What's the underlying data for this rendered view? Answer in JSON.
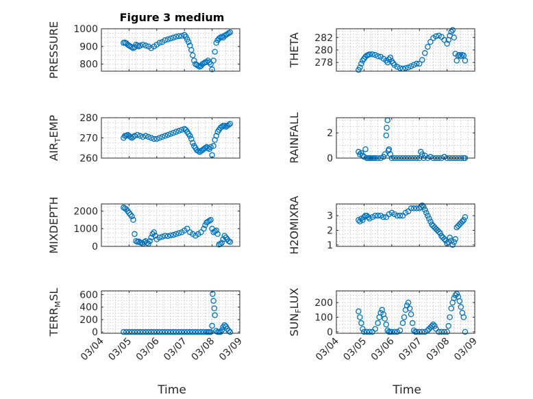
{
  "figure": {
    "title": "Figure 3 medium",
    "xlabel": "Time"
  },
  "colors": {
    "marker": "#0072BD",
    "axes": "#262626",
    "grid": "#bdbdbd"
  },
  "x_tick_labels": [
    "03/04",
    "03/05",
    "03/06",
    "03/07",
    "03/08",
    "03/09"
  ],
  "chart_data": [
    {
      "type": "scatter",
      "id": "pressure",
      "ylabel": "PRESSURE",
      "grid": true,
      "xlim": [
        0,
        5
      ],
      "ylim": [
        760,
        1000
      ],
      "yticks": [
        800,
        900,
        1000
      ],
      "x": [
        0.8,
        0.85,
        0.9,
        0.95,
        1.0,
        1.05,
        1.1,
        1.15,
        1.2,
        1.25,
        1.3,
        1.35,
        1.4,
        1.5,
        1.6,
        1.7,
        1.8,
        1.9,
        2.0,
        2.1,
        2.2,
        2.3,
        2.4,
        2.5,
        2.6,
        2.7,
        2.8,
        2.9,
        3.0,
        3.05,
        3.1,
        3.15,
        3.2,
        3.25,
        3.3,
        3.35,
        3.4,
        3.45,
        3.5,
        3.55,
        3.6,
        3.65,
        3.7,
        3.75,
        3.8,
        3.85,
        3.9,
        3.95,
        4.0,
        4.05,
        4.1,
        4.15,
        4.2,
        4.25,
        4.3,
        4.35,
        4.4,
        4.45,
        4.5,
        4.55,
        4.6,
        4.65
      ],
      "y": [
        920,
        922,
        918,
        910,
        905,
        900,
        895,
        890,
        895,
        910,
        905,
        900,
        905,
        910,
        905,
        900,
        890,
        900,
        910,
        920,
        925,
        935,
        940,
        945,
        950,
        955,
        958,
        960,
        965,
        955,
        940,
        925,
        905,
        880,
        850,
        820,
        800,
        795,
        790,
        785,
        790,
        800,
        805,
        810,
        812,
        820,
        810,
        800,
        770,
        820,
        870,
        920,
        935,
        945,
        950,
        955,
        950,
        960,
        965,
        970,
        975,
        980
      ]
    },
    {
      "type": "scatter",
      "id": "theta",
      "ylabel": "THETA",
      "grid": true,
      "xlim": [
        0,
        5
      ],
      "ylim": [
        276.6,
        283.4
      ],
      "yticks": [
        278,
        280,
        282
      ],
      "x": [
        0.8,
        0.85,
        0.9,
        0.95,
        1.0,
        1.05,
        1.1,
        1.15,
        1.2,
        1.3,
        1.4,
        1.5,
        1.6,
        1.7,
        1.8,
        1.85,
        1.9,
        1.95,
        2.0,
        2.05,
        2.1,
        2.2,
        2.3,
        2.4,
        2.5,
        2.6,
        2.7,
        2.8,
        2.9,
        3.0,
        3.1,
        3.2,
        3.3,
        3.4,
        3.5,
        3.6,
        3.7,
        3.8,
        3.9,
        4.0,
        4.05,
        4.1,
        4.15,
        4.2,
        4.25,
        4.3,
        4.35,
        4.4,
        4.45,
        4.5,
        4.55,
        4.6,
        4.65
      ],
      "y": [
        276.8,
        277.2,
        277.8,
        278.3,
        278.6,
        278.9,
        279.1,
        279.2,
        279.3,
        279.3,
        279.2,
        279.0,
        278.9,
        278.6,
        278.3,
        278.0,
        278.5,
        278.8,
        278.2,
        277.9,
        277.6,
        277.3,
        277.1,
        277.0,
        277.1,
        277.2,
        277.4,
        277.6,
        277.8,
        277.8,
        278.4,
        279.5,
        280.5,
        281.3,
        281.9,
        282.2,
        282.3,
        282.1,
        281.6,
        281.0,
        281.6,
        282.3,
        282.9,
        283.2,
        282.0,
        279.4,
        278.3,
        279.1,
        279.2,
        279.0,
        279.2,
        279.1,
        278.3
      ]
    },
    {
      "type": "scatter",
      "id": "airtemp",
      "ylabel": "AIR_TEMP",
      "grid": true,
      "xlim": [
        0,
        5
      ],
      "ylim": [
        260,
        280
      ],
      "yticks": [
        260,
        270,
        280
      ],
      "x": [
        0.8,
        0.85,
        0.9,
        0.95,
        1.0,
        1.05,
        1.1,
        1.15,
        1.2,
        1.3,
        1.4,
        1.5,
        1.6,
        1.7,
        1.8,
        1.9,
        2.0,
        2.1,
        2.2,
        2.3,
        2.4,
        2.5,
        2.6,
        2.7,
        2.8,
        2.9,
        3.0,
        3.05,
        3.1,
        3.15,
        3.2,
        3.25,
        3.3,
        3.35,
        3.4,
        3.45,
        3.5,
        3.55,
        3.6,
        3.65,
        3.7,
        3.75,
        3.8,
        3.85,
        3.9,
        3.95,
        4.0,
        4.05,
        4.1,
        4.15,
        4.2,
        4.25,
        4.3,
        4.35,
        4.4,
        4.45,
        4.5,
        4.55,
        4.6,
        4.65
      ],
      "y": [
        270,
        271,
        271,
        271.5,
        271,
        270.5,
        270,
        270.5,
        271,
        271.5,
        271,
        270.5,
        271,
        270.5,
        270,
        269.5,
        269.5,
        270,
        270.5,
        271,
        271.5,
        272,
        272.5,
        273,
        273.5,
        274,
        274.5,
        274,
        273,
        272,
        271,
        269.5,
        267.5,
        266,
        265,
        264,
        263.5,
        263,
        263.5,
        264,
        264.5,
        265,
        265.5,
        265,
        264.5,
        265.5,
        261.5,
        266,
        269,
        271,
        273,
        274,
        275,
        275.5,
        276,
        276,
        275.5,
        276,
        276.5,
        277
      ]
    },
    {
      "type": "scatter",
      "id": "rainfall",
      "ylabel": "RAINFALL",
      "grid": true,
      "xlim": [
        0,
        5
      ],
      "ylim": [
        0,
        3.2
      ],
      "yticks": [
        0,
        2
      ],
      "x": [
        0.8,
        0.85,
        0.9,
        0.95,
        1.0,
        1.05,
        1.1,
        1.15,
        1.2,
        1.25,
        1.3,
        1.35,
        1.4,
        1.5,
        1.6,
        1.7,
        1.75,
        1.8,
        1.82,
        1.85,
        1.88,
        1.9,
        1.95,
        2.0,
        2.1,
        2.2,
        2.3,
        2.4,
        2.5,
        2.6,
        2.7,
        2.8,
        2.9,
        3.0,
        3.05,
        3.1,
        3.15,
        3.2,
        3.3,
        3.4,
        3.5,
        3.6,
        3.7,
        3.8,
        3.9,
        4.0,
        4.1,
        4.2,
        4.3,
        4.4,
        4.5,
        4.6,
        4.65
      ],
      "y": [
        0.5,
        0.3,
        0.4,
        0.2,
        0.1,
        0.7,
        0.0,
        0.0,
        0.0,
        0.0,
        0.0,
        0.0,
        0.0,
        0.0,
        0.0,
        0.1,
        0.3,
        1.8,
        2.4,
        3.0,
        0.6,
        0.7,
        0.3,
        0.0,
        0.0,
        0.0,
        0.0,
        0.0,
        0.0,
        0.0,
        0.0,
        0.0,
        0.0,
        0.0,
        0.5,
        0.3,
        0.0,
        0.2,
        0.0,
        0.1,
        0.0,
        0.0,
        0.0,
        0.0,
        0.1,
        0.0,
        0.0,
        0.0,
        0.0,
        0.0,
        0.0,
        0.0,
        0.0
      ]
    },
    {
      "type": "scatter",
      "id": "mixdepth",
      "ylabel": "MIXDEPTH",
      "grid": true,
      "xlim": [
        0,
        5
      ],
      "ylim": [
        0,
        2400
      ],
      "yticks": [
        0,
        1000,
        2000
      ],
      "x": [
        0.8,
        0.85,
        0.9,
        0.95,
        1.0,
        1.05,
        1.1,
        1.15,
        1.2,
        1.25,
        1.3,
        1.35,
        1.4,
        1.45,
        1.5,
        1.55,
        1.6,
        1.65,
        1.7,
        1.75,
        1.8,
        1.85,
        1.9,
        1.95,
        2.0,
        2.1,
        2.2,
        2.3,
        2.4,
        2.5,
        2.6,
        2.7,
        2.8,
        2.9,
        3.0,
        3.1,
        3.2,
        3.3,
        3.4,
        3.5,
        3.6,
        3.7,
        3.75,
        3.8,
        3.85,
        3.9,
        3.95,
        4.0,
        4.05,
        4.1,
        4.15,
        4.2,
        4.25,
        4.3,
        4.35,
        4.4,
        4.45,
        4.5,
        4.55,
        4.6,
        4.65
      ],
      "y": [
        2200,
        2150,
        2100,
        2000,
        1900,
        1800,
        1700,
        1500,
        700,
        300,
        250,
        280,
        220,
        200,
        150,
        250,
        300,
        200,
        150,
        300,
        500,
        700,
        800,
        600,
        400,
        500,
        550,
        600,
        580,
        620,
        650,
        700,
        750,
        800,
        900,
        1000,
        800,
        700,
        600,
        700,
        800,
        1000,
        1200,
        1350,
        1400,
        1450,
        1500,
        1000,
        800,
        850,
        900,
        700,
        100,
        150,
        200,
        400,
        600,
        500,
        400,
        300,
        250
      ]
    },
    {
      "type": "scatter",
      "id": "h2omixra",
      "ylabel": "H2OMIXRA",
      "grid": true,
      "xlim": [
        0,
        5
      ],
      "ylim": [
        0.9,
        3.8
      ],
      "yticks": [
        1,
        2,
        3
      ],
      "x": [
        0.8,
        0.85,
        0.9,
        0.95,
        1.0,
        1.05,
        1.1,
        1.15,
        1.2,
        1.3,
        1.4,
        1.5,
        1.6,
        1.7,
        1.8,
        1.9,
        2.0,
        2.1,
        2.2,
        2.3,
        2.4,
        2.5,
        2.6,
        2.7,
        2.8,
        2.9,
        3.0,
        3.05,
        3.1,
        3.15,
        3.2,
        3.25,
        3.3,
        3.35,
        3.4,
        3.45,
        3.5,
        3.55,
        3.6,
        3.65,
        3.7,
        3.75,
        3.8,
        3.85,
        3.9,
        3.95,
        4.0,
        4.05,
        4.1,
        4.15,
        4.2,
        4.25,
        4.3,
        4.35,
        4.4,
        4.45,
        4.5,
        4.55,
        4.6,
        4.65
      ],
      "y": [
        2.7,
        2.6,
        2.8,
        2.7,
        2.9,
        3.0,
        3.0,
        2.9,
        2.8,
        2.9,
        3.0,
        3.0,
        3.0,
        2.9,
        2.9,
        3.1,
        3.2,
        3.1,
        3.0,
        3.0,
        3.0,
        3.2,
        3.3,
        3.5,
        3.5,
        3.5,
        3.5,
        3.6,
        3.7,
        3.6,
        3.4,
        3.2,
        3.0,
        2.8,
        2.6,
        2.4,
        2.3,
        2.2,
        2.1,
        2.0,
        1.9,
        1.8,
        1.6,
        1.5,
        1.4,
        1.3,
        1.1,
        1.2,
        1.5,
        1.3,
        1.0,
        1.2,
        1.4,
        2.2,
        2.3,
        2.4,
        2.5,
        2.6,
        2.7,
        2.9
      ]
    },
    {
      "type": "scatter",
      "id": "terrmsl",
      "ylabel": "TERR_MSL",
      "grid": true,
      "xlim": [
        0,
        5
      ],
      "ylim": [
        -20,
        660
      ],
      "yticks": [
        0,
        200,
        400,
        600
      ],
      "x": [
        0.8,
        0.9,
        1.0,
        1.1,
        1.2,
        1.3,
        1.4,
        1.5,
        1.6,
        1.7,
        1.8,
        1.9,
        2.0,
        2.1,
        2.2,
        2.3,
        2.4,
        2.5,
        2.6,
        2.7,
        2.8,
        2.9,
        3.0,
        3.1,
        3.2,
        3.3,
        3.4,
        3.5,
        3.6,
        3.7,
        3.8,
        3.85,
        3.9,
        3.95,
        4.0,
        4.02,
        4.05,
        4.08,
        4.1,
        4.15,
        4.2,
        4.25,
        4.3,
        4.35,
        4.4,
        4.45,
        4.5,
        4.55,
        4.6,
        4.65
      ],
      "y": [
        0,
        0,
        0,
        0,
        0,
        0,
        0,
        0,
        0,
        0,
        0,
        0,
        0,
        0,
        0,
        0,
        0,
        0,
        0,
        0,
        0,
        0,
        0,
        0,
        0,
        0,
        0,
        0,
        0,
        0,
        0,
        0,
        0,
        0,
        100,
        610,
        500,
        380,
        270,
        20,
        0,
        0,
        0,
        30,
        80,
        110,
        90,
        50,
        20,
        0
      ]
    },
    {
      "type": "scatter",
      "id": "sunflux",
      "ylabel": "SUN_FLUX",
      "grid": true,
      "xlim": [
        0,
        5
      ],
      "ylim": [
        -10,
        280
      ],
      "yticks": [
        0,
        100,
        200
      ],
      "x": [
        0.8,
        0.85,
        0.9,
        0.95,
        1.0,
        1.1,
        1.2,
        1.3,
        1.4,
        1.5,
        1.55,
        1.6,
        1.65,
        1.7,
        1.75,
        1.8,
        1.85,
        1.9,
        1.95,
        2.0,
        2.1,
        2.2,
        2.3,
        2.4,
        2.45,
        2.5,
        2.55,
        2.6,
        2.65,
        2.7,
        2.75,
        2.8,
        2.85,
        2.9,
        3.0,
        3.1,
        3.2,
        3.3,
        3.35,
        3.4,
        3.45,
        3.5,
        3.55,
        3.6,
        3.7,
        3.8,
        3.9,
        4.0,
        4.05,
        4.1,
        4.15,
        4.2,
        4.25,
        4.3,
        4.35,
        4.4,
        4.45,
        4.5,
        4.55,
        4.6,
        4.65
      ],
      "y": [
        140,
        100,
        60,
        20,
        0,
        0,
        0,
        0,
        20,
        60,
        100,
        130,
        150,
        120,
        90,
        50,
        10,
        0,
        0,
        0,
        0,
        0,
        10,
        60,
        100,
        150,
        180,
        200,
        160,
        120,
        60,
        10,
        0,
        0,
        0,
        0,
        0,
        10,
        20,
        30,
        40,
        50,
        40,
        20,
        0,
        0,
        0,
        0,
        40,
        100,
        160,
        200,
        230,
        250,
        260,
        240,
        210,
        170,
        130,
        100,
        0
      ]
    }
  ]
}
